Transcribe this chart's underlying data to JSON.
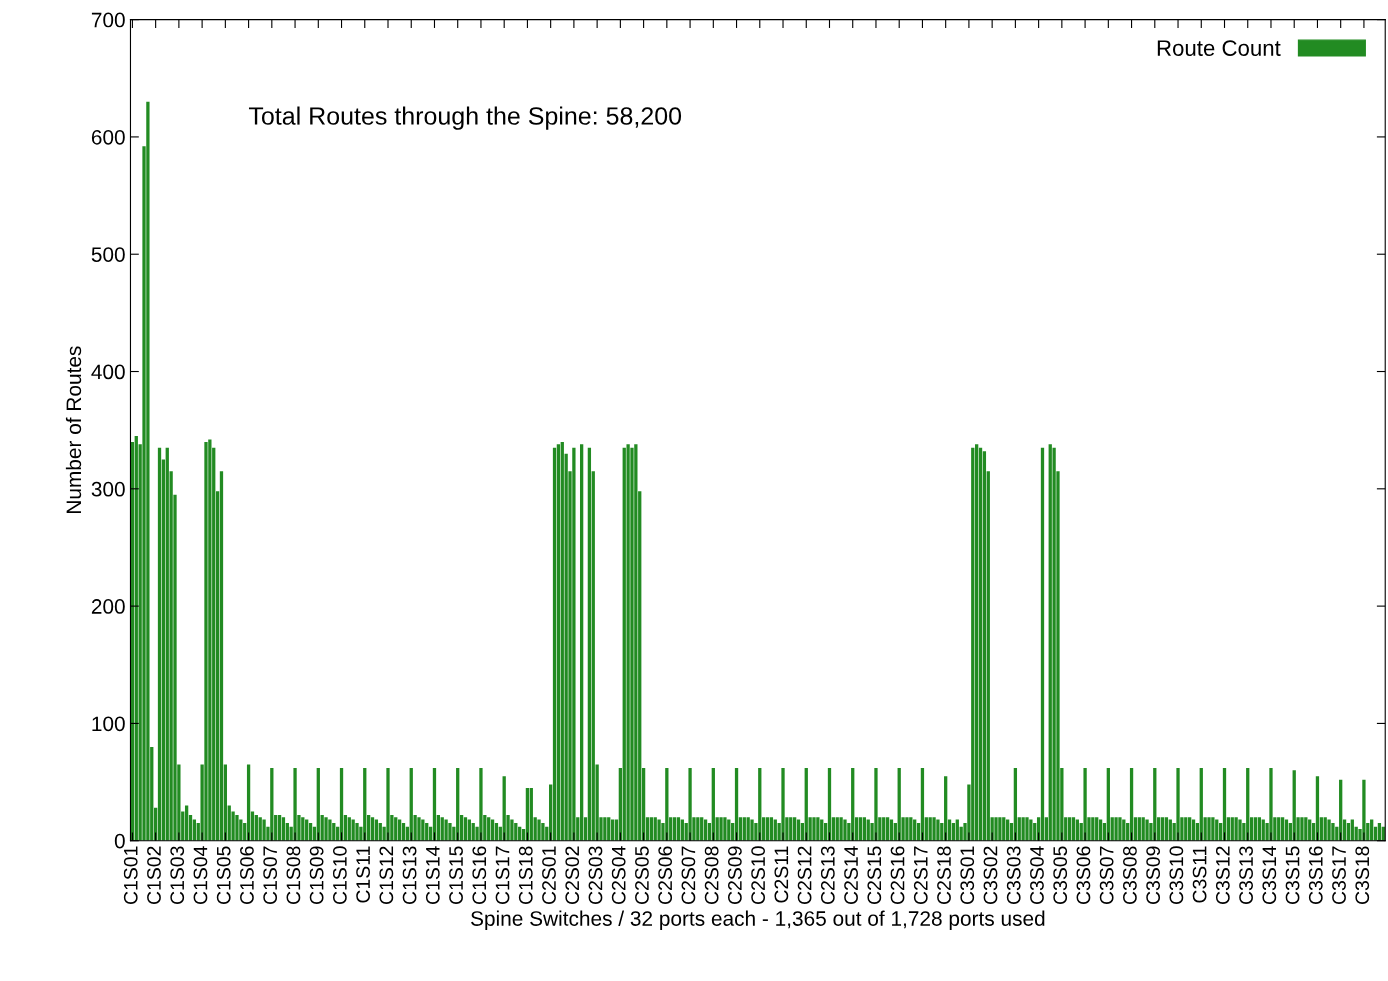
{
  "chart_data": {
    "type": "bar",
    "xlabel": "Spine Switches / 32 ports each - 1,365 out of 1,728 ports used",
    "ylabel": "Number of Routes",
    "annotations": [
      "Total Routes through the Spine: 58,200"
    ],
    "ylim": [
      0,
      700
    ],
    "yticks": [
      0,
      100,
      200,
      300,
      400,
      500,
      600,
      700
    ],
    "grid": false,
    "legend": "top right",
    "categories": [
      "C1S01",
      null,
      null,
      null,
      null,
      null,
      "C1S02",
      null,
      null,
      null,
      null,
      null,
      "C1S03",
      null,
      null,
      null,
      null,
      null,
      "C1S04",
      null,
      null,
      null,
      null,
      null,
      "C1S05",
      null,
      null,
      null,
      null,
      null,
      "C1S06",
      null,
      null,
      null,
      null,
      null,
      "C1S07",
      null,
      null,
      null,
      null,
      null,
      "C1S08",
      null,
      null,
      null,
      null,
      null,
      "C1S09",
      null,
      null,
      null,
      null,
      null,
      "C1S10",
      null,
      null,
      null,
      null,
      null,
      "C1S11",
      null,
      null,
      null,
      null,
      null,
      "C1S12",
      null,
      null,
      null,
      null,
      null,
      "C1S13",
      null,
      null,
      null,
      null,
      null,
      "C1S14",
      null,
      null,
      null,
      null,
      null,
      "C1S15",
      null,
      null,
      null,
      null,
      null,
      "C1S16",
      null,
      null,
      null,
      null,
      null,
      "C1S17",
      null,
      null,
      null,
      null,
      null,
      "C1S18",
      null,
      null,
      null,
      null,
      null,
      "C2S01",
      null,
      null,
      null,
      null,
      null,
      "C2S02",
      null,
      null,
      null,
      null,
      null,
      "C2S03",
      null,
      null,
      null,
      null,
      null,
      "C2S04",
      null,
      null,
      null,
      null,
      null,
      "C2S05",
      null,
      null,
      null,
      null,
      null,
      "C2S06",
      null,
      null,
      null,
      null,
      null,
      "C2S07",
      null,
      null,
      null,
      null,
      null,
      "C2S08",
      null,
      null,
      null,
      null,
      null,
      "C2S09",
      null,
      null,
      null,
      null,
      null,
      "C2S10",
      null,
      null,
      null,
      null,
      null,
      "C2S11",
      null,
      null,
      null,
      null,
      null,
      "C2S12",
      null,
      null,
      null,
      null,
      null,
      "C2S13",
      null,
      null,
      null,
      null,
      null,
      "C2S14",
      null,
      null,
      null,
      null,
      null,
      "C2S15",
      null,
      null,
      null,
      null,
      null,
      "C2S16",
      null,
      null,
      null,
      null,
      null,
      "C2S17",
      null,
      null,
      null,
      null,
      null,
      "C2S18",
      null,
      null,
      null,
      null,
      null,
      "C3S01",
      null,
      null,
      null,
      null,
      null,
      "C3S02",
      null,
      null,
      null,
      null,
      null,
      "C3S03",
      null,
      null,
      null,
      null,
      null,
      "C3S04",
      null,
      null,
      null,
      null,
      null,
      "C3S05",
      null,
      null,
      null,
      null,
      null,
      "C3S06",
      null,
      null,
      null,
      null,
      null,
      "C3S07",
      null,
      null,
      null,
      null,
      null,
      "C3S08",
      null,
      null,
      null,
      null,
      null,
      "C3S09",
      null,
      null,
      null,
      null,
      null,
      "C3S10",
      null,
      null,
      null,
      null,
      null,
      "C3S11",
      null,
      null,
      null,
      null,
      null,
      "C3S12",
      null,
      null,
      null,
      null,
      null,
      "C3S13",
      null,
      null,
      null,
      null,
      null,
      "C3S14",
      null,
      null,
      null,
      null,
      null,
      "C3S15",
      null,
      null,
      null,
      null,
      null,
      "C3S16",
      null,
      null,
      null,
      null,
      null,
      "C3S17",
      null,
      null,
      null,
      null,
      null,
      "C3S18",
      null,
      null,
      null,
      null,
      null
    ],
    "series": [
      {
        "name": "Route Count",
        "color": "#228b22",
        "values": [
          340,
          345,
          338,
          592,
          630,
          80,
          28,
          335,
          325,
          335,
          315,
          295,
          65,
          25,
          30,
          22,
          18,
          15,
          65,
          340,
          342,
          335,
          298,
          315,
          65,
          30,
          25,
          22,
          18,
          15,
          65,
          25,
          22,
          20,
          18,
          12,
          62,
          22,
          22,
          20,
          15,
          12,
          62,
          22,
          20,
          18,
          15,
          12,
          62,
          22,
          20,
          18,
          15,
          12,
          62,
          22,
          20,
          18,
          15,
          12,
          62,
          22,
          20,
          18,
          15,
          12,
          62,
          22,
          20,
          18,
          15,
          12,
          62,
          22,
          20,
          18,
          15,
          12,
          62,
          22,
          20,
          18,
          15,
          12,
          62,
          22,
          20,
          18,
          15,
          12,
          62,
          22,
          20,
          18,
          15,
          12,
          55,
          22,
          18,
          15,
          12,
          10,
          45,
          45,
          20,
          18,
          15,
          12,
          48,
          335,
          338,
          340,
          330,
          315,
          335,
          20,
          338,
          20,
          335,
          315,
          65,
          20,
          20,
          20,
          18,
          18,
          62,
          335,
          338,
          335,
          338,
          298,
          62,
          20,
          20,
          20,
          18,
          15,
          62,
          20,
          20,
          20,
          18,
          15,
          62,
          20,
          20,
          20,
          18,
          15,
          62,
          20,
          20,
          20,
          18,
          15,
          62,
          20,
          20,
          20,
          18,
          15,
          62,
          20,
          20,
          20,
          18,
          15,
          62,
          20,
          20,
          20,
          18,
          15,
          62,
          20,
          20,
          20,
          18,
          15,
          62,
          20,
          20,
          20,
          18,
          15,
          62,
          20,
          20,
          20,
          18,
          15,
          62,
          20,
          20,
          20,
          18,
          15,
          62,
          20,
          20,
          20,
          18,
          15,
          62,
          20,
          20,
          20,
          18,
          15,
          55,
          18,
          15,
          18,
          12,
          15,
          48,
          335,
          338,
          335,
          332,
          315,
          20,
          20,
          20,
          20,
          18,
          15,
          62,
          20,
          20,
          20,
          18,
          15,
          20,
          335,
          20,
          338,
          335,
          315,
          62,
          20,
          20,
          20,
          18,
          15,
          62,
          20,
          20,
          20,
          18,
          15,
          62,
          20,
          20,
          20,
          18,
          15,
          62,
          20,
          20,
          20,
          18,
          15,
          62,
          20,
          20,
          20,
          18,
          15,
          62,
          20,
          20,
          20,
          18,
          15,
          62,
          20,
          20,
          20,
          18,
          15,
          62,
          20,
          20,
          20,
          18,
          15,
          62,
          20,
          20,
          20,
          18,
          15,
          62,
          20,
          20,
          20,
          18,
          15,
          60,
          20,
          20,
          20,
          18,
          15,
          55,
          20,
          20,
          18,
          15,
          12,
          52,
          18,
          15,
          18,
          12,
          10,
          52,
          15,
          18,
          12,
          15,
          12
        ]
      }
    ]
  }
}
